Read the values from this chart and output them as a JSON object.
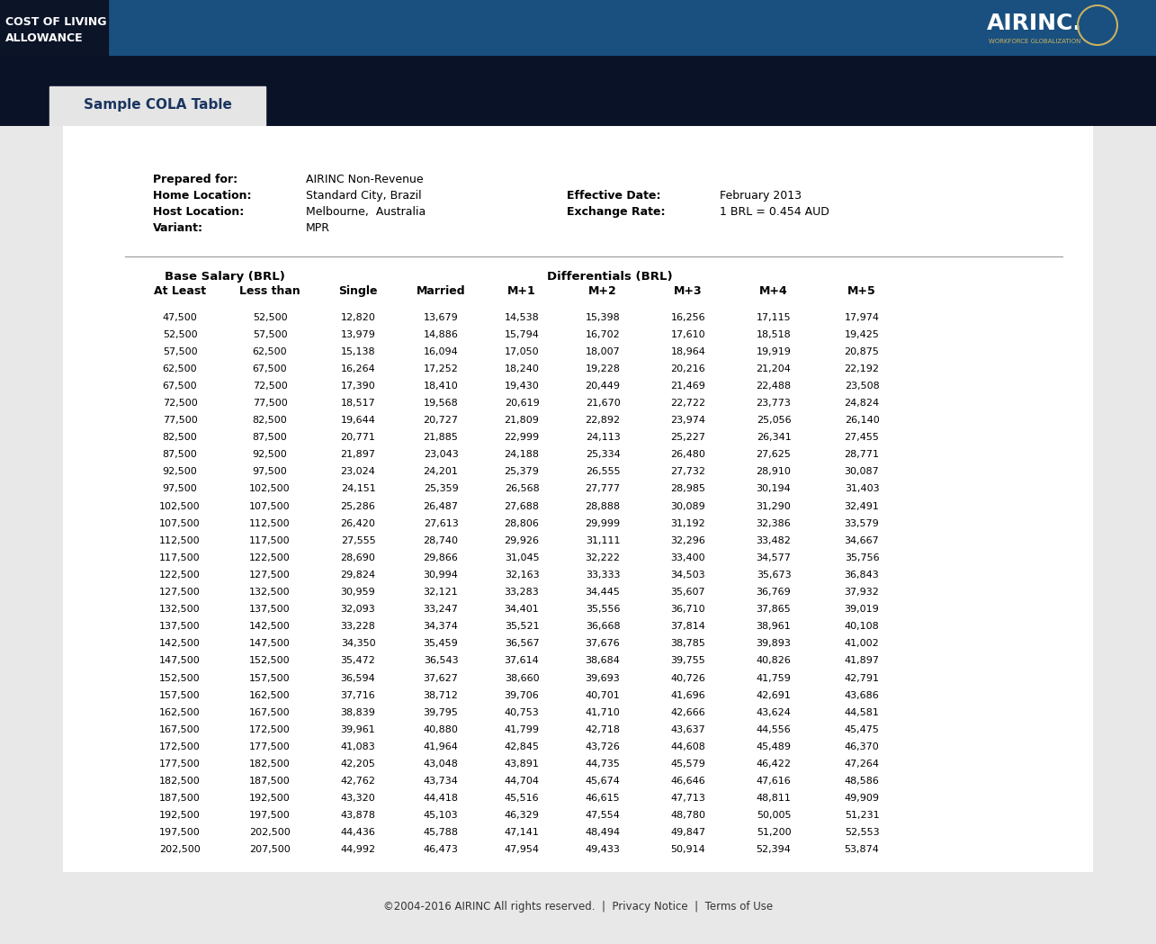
{
  "header_bg_dark": "#0c1428",
  "header_bg_blue": "#1a5080",
  "header_text_line1": "COST OF LIVING",
  "header_text_line2": "ALLOWANCE",
  "airinc_text": "AIRINC.",
  "airinc_sub": "WORKFORCE GLOBALIZATION",
  "nav_bg": "#0a1228",
  "tab_text": "Sample COLA Table",
  "tab_bg": "#e5e5e5",
  "tab_text_color": "#1a3560",
  "main_bg": "#e8e8e8",
  "content_bg": "#ffffff",
  "footer_bg": "#e8e8e8",
  "footer_text": "©2004-2016 AIRINC All rights reserved.  |  Privacy Notice  |  Terms of Use",
  "meta_labels": [
    "Prepared for:",
    "Home Location:",
    "Host Location:",
    "Variant:"
  ],
  "meta_values": [
    "AIRINC Non-Revenue",
    "Standard City, Brazil",
    "Melbourne,  Australia",
    "MPR"
  ],
  "meta_labels2": [
    "Effective Date:",
    "Exchange Rate:"
  ],
  "meta_values2": [
    "February 2013",
    "1 BRL = 0.454 AUD"
  ],
  "table_header1": "Base Salary (BRL)",
  "table_header2": "Differentials (BRL)",
  "col_headers": [
    "At Least",
    "Less than",
    "Single",
    "Married",
    "M+1",
    "M+2",
    "M+3",
    "M+4",
    "M+5"
  ],
  "table_data": [
    [
      47500,
      52500,
      12820,
      13679,
      14538,
      15398,
      16256,
      17115,
      17974
    ],
    [
      52500,
      57500,
      13979,
      14886,
      15794,
      16702,
      17610,
      18518,
      19425
    ],
    [
      57500,
      62500,
      15138,
      16094,
      17050,
      18007,
      18964,
      19919,
      20875
    ],
    [
      62500,
      67500,
      16264,
      17252,
      18240,
      19228,
      20216,
      21204,
      22192
    ],
    [
      67500,
      72500,
      17390,
      18410,
      19430,
      20449,
      21469,
      22488,
      23508
    ],
    [
      72500,
      77500,
      18517,
      19568,
      20619,
      21670,
      22722,
      23773,
      24824
    ],
    [
      77500,
      82500,
      19644,
      20727,
      21809,
      22892,
      23974,
      25056,
      26140
    ],
    [
      82500,
      87500,
      20771,
      21885,
      22999,
      24113,
      25227,
      26341,
      27455
    ],
    [
      87500,
      92500,
      21897,
      23043,
      24188,
      25334,
      26480,
      27625,
      28771
    ],
    [
      92500,
      97500,
      23024,
      24201,
      25379,
      26555,
      27732,
      28910,
      30087
    ],
    [
      97500,
      102500,
      24151,
      25359,
      26568,
      27777,
      28985,
      30194,
      31403
    ],
    [
      102500,
      107500,
      25286,
      26487,
      27688,
      28888,
      30089,
      31290,
      32491
    ],
    [
      107500,
      112500,
      26420,
      27613,
      28806,
      29999,
      31192,
      32386,
      33579
    ],
    [
      112500,
      117500,
      27555,
      28740,
      29926,
      31111,
      32296,
      33482,
      34667
    ],
    [
      117500,
      122500,
      28690,
      29866,
      31045,
      32222,
      33400,
      34577,
      35756
    ],
    [
      122500,
      127500,
      29824,
      30994,
      32163,
      33333,
      34503,
      35673,
      36843
    ],
    [
      127500,
      132500,
      30959,
      32121,
      33283,
      34445,
      35607,
      36769,
      37932
    ],
    [
      132500,
      137500,
      32093,
      33247,
      34401,
      35556,
      36710,
      37865,
      39019
    ],
    [
      137500,
      142500,
      33228,
      34374,
      35521,
      36668,
      37814,
      38961,
      40108
    ],
    [
      142500,
      147500,
      34350,
      35459,
      36567,
      37676,
      38785,
      39893,
      41002
    ],
    [
      147500,
      152500,
      35472,
      36543,
      37614,
      38684,
      39755,
      40826,
      41897
    ],
    [
      152500,
      157500,
      36594,
      37627,
      38660,
      39693,
      40726,
      41759,
      42791
    ],
    [
      157500,
      162500,
      37716,
      38712,
      39706,
      40701,
      41696,
      42691,
      43686
    ],
    [
      162500,
      167500,
      38839,
      39795,
      40753,
      41710,
      42666,
      43624,
      44581
    ],
    [
      167500,
      172500,
      39961,
      40880,
      41799,
      42718,
      43637,
      44556,
      45475
    ],
    [
      172500,
      177500,
      41083,
      41964,
      42845,
      43726,
      44608,
      45489,
      46370
    ],
    [
      177500,
      182500,
      42205,
      43048,
      43891,
      44735,
      45579,
      46422,
      47264
    ],
    [
      182500,
      187500,
      42762,
      43734,
      44704,
      45674,
      46646,
      47616,
      48586
    ],
    [
      187500,
      192500,
      43320,
      44418,
      45516,
      46615,
      47713,
      48811,
      49909
    ],
    [
      192500,
      197500,
      43878,
      45103,
      46329,
      47554,
      48780,
      50005,
      51231
    ],
    [
      197500,
      202500,
      44436,
      45788,
      47141,
      48494,
      49847,
      51200,
      52553
    ],
    [
      202500,
      207500,
      44992,
      46473,
      47954,
      49433,
      50914,
      52394,
      53874
    ]
  ]
}
